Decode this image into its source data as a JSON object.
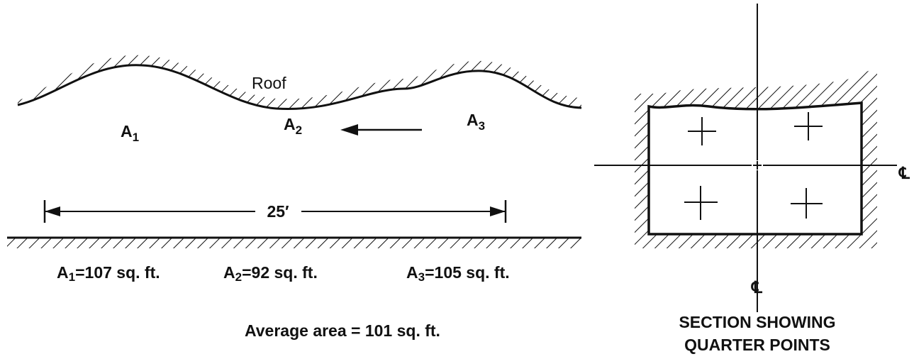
{
  "profile": {
    "roof_label": "Roof",
    "areas": [
      {
        "name": "A",
        "subscript": "1"
      },
      {
        "name": "A",
        "subscript": "2"
      },
      {
        "name": "A",
        "subscript": "3"
      }
    ],
    "span_label": "25′",
    "area_values": [
      {
        "name": "A",
        "subscript": "1",
        "text": "=107 sq. ft."
      },
      {
        "name": "A",
        "subscript": "2",
        "text": "=92 sq. ft."
      },
      {
        "name": "A",
        "subscript": "3",
        "text": "=105 sq. ft."
      }
    ],
    "average": "Average area = 101 sq. ft."
  },
  "section": {
    "centerline_symbol": "℄",
    "caption": [
      "SECTION SHOWING",
      "QUARTER POINTS"
    ]
  }
}
